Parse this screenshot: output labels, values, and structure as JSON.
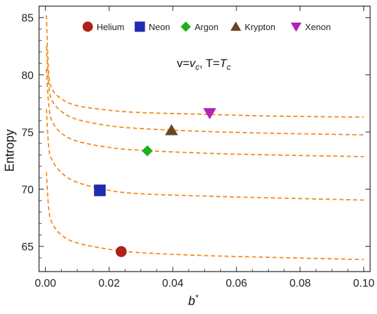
{
  "chart_data": {
    "type": "line",
    "title": "",
    "xlabel_main": "b",
    "xlabel_sup": "*",
    "ylabel": "Entropy",
    "xlim": [
      -0.002,
      0.102
    ],
    "ylim": [
      62.8,
      86.0
    ],
    "x_ticks": [
      0.0,
      0.02,
      0.04,
      0.06,
      0.08,
      0.1
    ],
    "x_tick_labels": [
      "0.00",
      "0.02",
      "0.04",
      "0.06",
      "0.08",
      "0.10"
    ],
    "y_ticks": [
      65,
      70,
      75,
      80,
      85
    ],
    "y_tick_labels": [
      "65",
      "70",
      "75",
      "80",
      "85"
    ],
    "grid": false,
    "legend_position": "top",
    "annotation": {
      "v": "v=",
      "v_main": "v",
      "v_sub": "c",
      "sep": ", T=",
      "t_main": "T",
      "t_sub": "c"
    },
    "curve_color": "#f28a1e",
    "curve_style": "dashed",
    "curves": [
      {
        "x": [
          0.0003,
          0.001,
          0.002,
          0.005,
          0.01,
          0.02,
          0.03,
          0.05,
          0.07,
          0.1
        ],
        "y": [
          71.5,
          68.4,
          67.1,
          66.0,
          65.3,
          64.75,
          64.45,
          64.2,
          64.05,
          63.85
        ]
      },
      {
        "x": [
          0.0003,
          0.001,
          0.002,
          0.005,
          0.01,
          0.02,
          0.03,
          0.05,
          0.07,
          0.1
        ],
        "y": [
          77.0,
          73.8,
          72.6,
          71.45,
          70.6,
          69.9,
          69.6,
          69.4,
          69.25,
          69.05
        ]
      },
      {
        "x": [
          0.0003,
          0.001,
          0.002,
          0.005,
          0.01,
          0.02,
          0.03,
          0.05,
          0.07,
          0.1
        ],
        "y": [
          80.5,
          77.5,
          76.0,
          74.9,
          74.2,
          73.65,
          73.4,
          73.15,
          73.0,
          72.85
        ]
      },
      {
        "x": [
          0.0003,
          0.001,
          0.002,
          0.005,
          0.01,
          0.02,
          0.03,
          0.05,
          0.07,
          0.1
        ],
        "y": [
          82.5,
          79.2,
          77.8,
          76.8,
          76.1,
          75.55,
          75.3,
          75.05,
          74.9,
          74.75
        ]
      },
      {
        "x": [
          0.0003,
          0.001,
          0.002,
          0.005,
          0.01,
          0.02,
          0.03,
          0.05,
          0.07,
          0.1
        ],
        "y": [
          85.2,
          80.2,
          78.8,
          77.9,
          77.3,
          76.9,
          76.7,
          76.55,
          76.4,
          76.3
        ]
      }
    ],
    "series": [
      {
        "name": "Helium",
        "x": 0.0238,
        "y": 64.55,
        "marker": "circle",
        "color": "#b01f18"
      },
      {
        "name": "Neon",
        "x": 0.0171,
        "y": 69.9,
        "marker": "square",
        "color": "#1f2bb0"
      },
      {
        "name": "Argon",
        "x": 0.032,
        "y": 73.35,
        "marker": "diamond",
        "color": "#1fb01f"
      },
      {
        "name": "Krypton",
        "x": 0.0396,
        "y": 75.15,
        "marker": "triangle-up",
        "color": "#6b4523"
      },
      {
        "name": "Xenon",
        "x": 0.0516,
        "y": 76.65,
        "marker": "triangle-down",
        "color": "#b71fb7"
      }
    ]
  }
}
